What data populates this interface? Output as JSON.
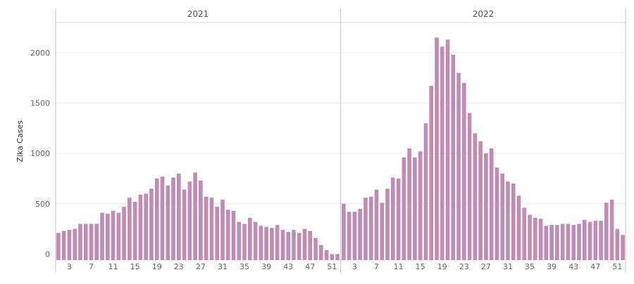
{
  "chart_data": {
    "type": "bar",
    "ylabel": "Zika Cases",
    "ylim": [
      -60,
      2300
    ],
    "yticks": [
      0,
      500,
      1000,
      1500,
      2000
    ],
    "grid": "horizontal",
    "bar_color": "#c08cb4",
    "x_tick_weeks": [
      3,
      7,
      11,
      15,
      19,
      23,
      27,
      31,
      35,
      39,
      43,
      47,
      51
    ],
    "panels": [
      {
        "title": "2021",
        "weeks": [
          1,
          2,
          3,
          4,
          5,
          6,
          7,
          8,
          9,
          10,
          11,
          12,
          13,
          14,
          15,
          16,
          17,
          18,
          19,
          20,
          21,
          22,
          23,
          24,
          25,
          26,
          27,
          28,
          29,
          30,
          31,
          32,
          33,
          34,
          35,
          36,
          37,
          38,
          39,
          40,
          41,
          42,
          43,
          44,
          45,
          46,
          47,
          48,
          49,
          50,
          51,
          52
        ],
        "values": [
          210,
          230,
          240,
          250,
          300,
          300,
          300,
          300,
          410,
          400,
          430,
          410,
          470,
          560,
          520,
          590,
          600,
          650,
          750,
          770,
          680,
          760,
          800,
          640,
          720,
          810,
          730,
          570,
          560,
          470,
          540,
          440,
          430,
          320,
          300,
          360,
          320,
          280,
          270,
          260,
          290,
          240,
          220,
          240,
          210,
          250,
          230,
          160,
          90,
          40,
          0,
          0
        ]
      },
      {
        "title": "2022",
        "weeks": [
          1,
          2,
          3,
          4,
          5,
          6,
          7,
          8,
          9,
          10,
          11,
          12,
          13,
          14,
          15,
          16,
          17,
          18,
          19,
          20,
          21,
          22,
          23,
          24,
          25,
          26,
          27,
          28,
          29,
          30,
          31,
          32,
          33,
          34,
          35,
          36,
          37,
          38,
          39,
          40,
          41,
          42,
          43,
          44,
          45,
          46,
          47,
          48,
          49,
          50,
          51,
          52
        ],
        "values": [
          500,
          420,
          420,
          450,
          560,
          570,
          640,
          510,
          650,
          760,
          750,
          960,
          1050,
          960,
          1020,
          1300,
          1670,
          2150,
          2060,
          2130,
          1980,
          1800,
          1700,
          1400,
          1200,
          1120,
          1000,
          1050,
          860,
          800,
          720,
          700,
          580,
          460,
          390,
          360,
          350,
          280,
          290,
          290,
          300,
          300,
          290,
          300,
          340,
          320,
          330,
          330,
          510,
          540,
          250,
          190
        ]
      }
    ]
  }
}
